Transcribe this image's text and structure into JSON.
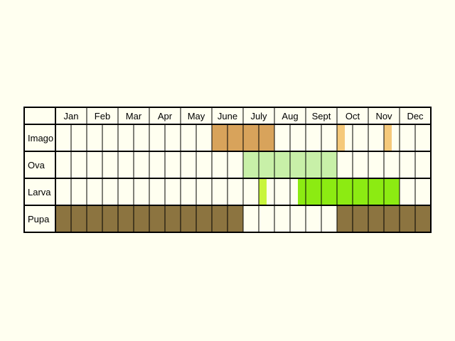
{
  "months": [
    "Jan",
    "Feb",
    "Mar",
    "Apr",
    "May",
    "June",
    "July",
    "Aug",
    "Sept",
    "Oct",
    "Nov",
    "Dec"
  ],
  "colors": {
    "background": "#FFFFF0",
    "grid": "#000000",
    "imago": "#D8A35B",
    "imago_light": "#F5C97A",
    "ova": "#C8F0A8",
    "larva": "#8CEB12",
    "larva_light": "#C8F53C",
    "pupa": "#8C7440"
  },
  "rows": [
    {
      "label": "Imago",
      "spans": [
        {
          "start": 5.0,
          "end": 7.0,
          "color": "imago"
        },
        {
          "start": 9.0,
          "end": 9.25,
          "color": "imago_light"
        },
        {
          "start": 10.5,
          "end": 10.75,
          "color": "imago_light"
        }
      ]
    },
    {
      "label": "Ova",
      "spans": [
        {
          "start": 6.0,
          "end": 9.0,
          "color": "ova"
        }
      ]
    },
    {
      "label": "Larva",
      "spans": [
        {
          "start": 6.5,
          "end": 6.75,
          "color": "larva_light"
        },
        {
          "start": 7.75,
          "end": 11.0,
          "color": "larva"
        }
      ]
    },
    {
      "label": "Pupa",
      "spans": [
        {
          "start": 0.0,
          "end": 6.0,
          "color": "pupa"
        },
        {
          "start": 9.0,
          "end": 12.0,
          "color": "pupa"
        }
      ]
    }
  ]
}
